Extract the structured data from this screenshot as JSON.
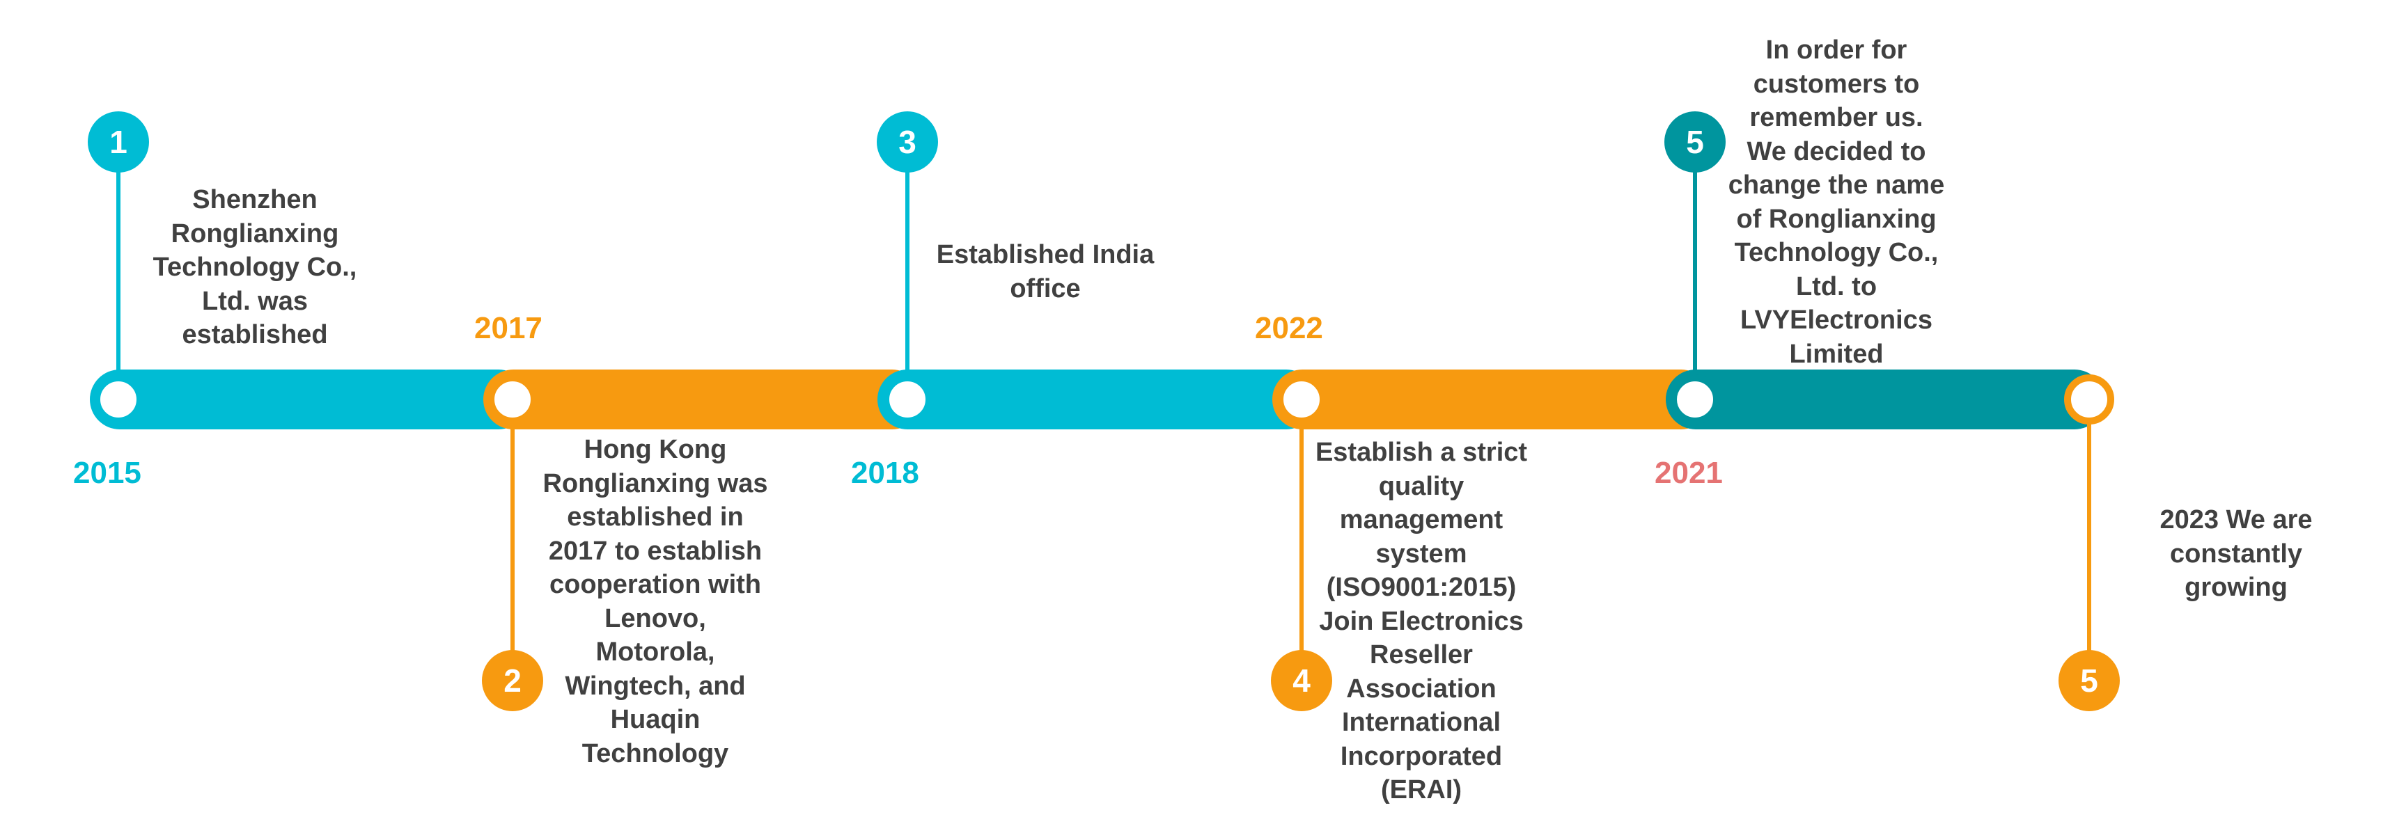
{
  "colors": {
    "teal": "#00BCD4",
    "orange": "#F79A10",
    "dark_teal": "#00959E",
    "rose": "#E57373",
    "text": "#404040"
  },
  "milestones": [
    {
      "number": "1",
      "year": "2015",
      "text": "Shenzhen\nRonglianxing\nTechnology Co.,\nLtd. was\nestablished"
    },
    {
      "number": "2",
      "year": "2017",
      "text": "Hong Kong\nRonglianxing was\nestablished in\n2017 to establish\ncooperation with\nLenovo,\nMotorola,\nWingtech, and\nHuaqin\nTechnology"
    },
    {
      "number": "3",
      "year": "2018",
      "text": "Established India\noffice"
    },
    {
      "number": "4",
      "year": "2022",
      "text": "Establish a strict\nquality\nmanagement\nsystem\n(ISO9001:2015)\nJoin Electronics\nReseller\nAssociation\nInternational\nIncorporated\n(ERAI)"
    },
    {
      "number": "5",
      "year": "2021",
      "text": "In order for\ncustomers to\nremember us.\nWe decided to\nchange the name\nof Ronglianxing\nTechnology Co.,\nLtd. to\nLVYElectronics\nLimited"
    },
    {
      "number": "5",
      "year": "",
      "text": "2023 We are\nconstantly\ngrowing"
    }
  ]
}
